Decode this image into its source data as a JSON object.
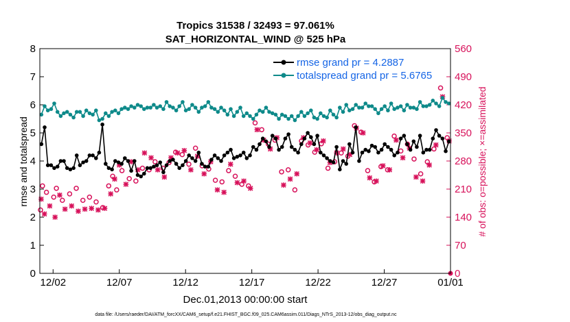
{
  "chart_data": {
    "type": "line",
    "title": "Tropics 31538 / 32493 = 97.061%",
    "subtitle": "SAT_HORIZONTAL_WIND @ 525 hPa",
    "xlabel": "Dec.01,2013 00:00:00 start",
    "ylabel": "rmse and totalspread",
    "y2label": "# of obs: o=possible; ×=assimilated",
    "footnote": "data file: /Users/raeder/DAI/ATM_forcXX/CAM6_setup/f.e21.FHIST_BGC.f09_025.CAM6assim.011/Diags_NTrS_2013-12/obs_diag_output.nc",
    "xlim": [
      0,
      31
    ],
    "ylim": [
      0,
      8
    ],
    "y2lim": [
      0,
      560
    ],
    "xticks": [
      {
        "pos": 1,
        "label": "12/02"
      },
      {
        "pos": 6,
        "label": "12/07"
      },
      {
        "pos": 11,
        "label": "12/12"
      },
      {
        "pos": 16,
        "label": "12/17"
      },
      {
        "pos": 21,
        "label": "12/22"
      },
      {
        "pos": 26,
        "label": "12/27"
      },
      {
        "pos": 31,
        "label": "01/01"
      }
    ],
    "yticks": [
      "0",
      "1",
      "2",
      "3",
      "4",
      "5",
      "6",
      "7",
      "8"
    ],
    "y2ticks": [
      "0",
      "70",
      "140",
      "210",
      "280",
      "350",
      "420",
      "490",
      "560"
    ],
    "colors": {
      "rmse": "#000000",
      "spread": "#0e8a8a",
      "obs": "#d7115a",
      "legend_text": "#1565e6"
    },
    "series": [
      {
        "name": "rmse grand pr = 4.2887",
        "axis": "left",
        "marker": "filled-circle",
        "values": [
          4.6,
          5.2,
          3.85,
          3.85,
          3.75,
          3.8,
          4.0,
          4.0,
          3.75,
          3.7,
          3.75,
          4.2,
          3.85,
          3.95,
          4.0,
          4.2,
          4.2,
          4.1,
          4.3,
          5.3,
          3.9,
          3.75,
          3.7,
          4.0,
          3.95,
          3.9,
          4.1,
          4.0,
          3.65,
          4.0,
          3.5,
          3.45,
          3.55,
          3.75,
          3.75,
          3.8,
          3.85,
          3.95,
          3.6,
          3.85,
          4.0,
          4.05,
          3.9,
          3.75,
          3.85,
          4.0,
          4.2,
          4.1,
          4.0,
          4.3,
          3.9,
          3.8,
          3.8,
          4.05,
          4.2,
          4.1,
          4.0,
          4.2,
          4.3,
          4.4,
          4.1,
          4.15,
          4.2,
          4.3,
          4.1,
          4.2,
          4.5,
          4.4,
          4.6,
          4.8,
          4.7,
          4.5,
          4.9,
          4.8,
          4.4,
          4.5,
          4.8,
          4.95,
          4.5,
          4.4,
          4.3,
          4.6,
          4.8,
          5.0,
          4.85,
          4.6,
          4.9,
          4.3,
          4.2,
          4.1,
          4.0,
          3.95,
          4.5,
          3.7,
          4.0,
          3.9,
          4.6,
          4.3,
          5.2,
          4.0,
          4.3,
          4.4,
          4.35,
          4.55,
          4.5,
          4.3,
          4.4,
          4.6,
          4.5,
          4.4,
          4.2,
          4.3,
          4.8,
          4.9,
          4.6,
          4.4,
          4.7,
          4.5,
          4.9,
          4.3,
          4.4,
          4.4,
          4.8,
          5.1,
          4.9,
          4.8,
          4.35,
          4.7
        ]
      },
      {
        "name": "totalspread grand pr = 5.6765",
        "axis": "left",
        "marker": "filled-circle",
        "values": [
          5.65,
          5.95,
          5.8,
          5.85,
          6.05,
          5.75,
          5.6,
          5.7,
          5.75,
          5.65,
          5.55,
          5.75,
          5.75,
          5.6,
          5.8,
          5.7,
          5.65,
          5.8,
          5.45,
          5.5,
          5.7,
          5.6,
          5.75,
          5.8,
          5.7,
          5.85,
          5.9,
          5.85,
          5.95,
          5.9,
          6.0,
          5.95,
          5.85,
          5.9,
          5.9,
          6.0,
          5.9,
          5.95,
          5.85,
          6.1,
          5.95,
          5.9,
          5.8,
          5.95,
          6.1,
          5.8,
          5.85,
          6.0,
          5.9,
          5.75,
          5.9,
          5.95,
          6.1,
          5.9,
          5.85,
          5.75,
          5.9,
          5.8,
          5.65,
          5.85,
          5.6,
          5.75,
          5.9,
          5.6,
          5.7,
          5.6,
          5.5,
          5.65,
          5.8,
          5.75,
          5.9,
          5.75,
          5.7,
          5.65,
          5.5,
          5.65,
          5.6,
          5.5,
          5.6,
          5.45,
          5.6,
          5.75,
          5.6,
          5.7,
          5.8,
          5.55,
          5.5,
          5.7,
          5.6,
          5.55,
          5.8,
          5.65,
          5.55,
          5.9,
          5.75,
          6.0,
          5.8,
          5.85,
          6.0,
          5.9,
          5.9,
          6.05,
          5.95,
          5.95,
          5.85,
          5.7,
          5.85,
          5.95,
          5.8,
          6.05,
          5.85,
          5.9,
          5.95,
          5.8,
          6.0,
          5.9,
          5.9,
          5.85,
          6.1,
          5.95,
          5.95,
          6.0,
          6.15,
          6.05,
          5.95,
          6.25,
          6.1,
          6.05
        ]
      }
    ],
    "obs_possible": [
      {
        "x": 0.05,
        "y": 158
      },
      {
        "x": 0.2,
        "y": 218
      },
      {
        "x": 0.5,
        "y": 202
      },
      {
        "x": 1.05,
        "y": 190
      },
      {
        "x": 1.25,
        "y": 212
      },
      {
        "x": 1.7,
        "y": 182
      },
      {
        "x": 2.25,
        "y": 198
      },
      {
        "x": 2.75,
        "y": 212
      },
      {
        "x": 3.25,
        "y": 182
      },
      {
        "x": 3.75,
        "y": 190
      },
      {
        "x": 4.25,
        "y": 178
      },
      {
        "x": 4.75,
        "y": 164
      },
      {
        "x": 5.2,
        "y": 218
      },
      {
        "x": 5.5,
        "y": 242
      },
      {
        "x": 5.8,
        "y": 208
      },
      {
        "x": 6.2,
        "y": 256
      },
      {
        "x": 6.75,
        "y": 236
      },
      {
        "x": 7.25,
        "y": 230
      },
      {
        "x": 7.75,
        "y": 262
      },
      {
        "x": 8.25,
        "y": 258
      },
      {
        "x": 8.7,
        "y": 278
      },
      {
        "x": 9.3,
        "y": 262
      },
      {
        "x": 9.75,
        "y": 276
      },
      {
        "x": 10.25,
        "y": 302
      },
      {
        "x": 10.75,
        "y": 296
      },
      {
        "x": 11.25,
        "y": 272
      },
      {
        "x": 11.75,
        "y": 312
      },
      {
        "x": 12.25,
        "y": 268
      },
      {
        "x": 12.75,
        "y": 260
      },
      {
        "x": 13.25,
        "y": 232
      },
      {
        "x": 13.75,
        "y": 228
      },
      {
        "x": 14.25,
        "y": 256
      },
      {
        "x": 14.75,
        "y": 242
      },
      {
        "x": 15.25,
        "y": 222
      },
      {
        "x": 15.75,
        "y": 218
      },
      {
        "x": 16.25,
        "y": 375
      },
      {
        "x": 16.75,
        "y": 358
      },
      {
        "x": 17.25,
        "y": 322
      },
      {
        "x": 17.75,
        "y": 332
      },
      {
        "x": 18.25,
        "y": 253
      },
      {
        "x": 18.75,
        "y": 258
      },
      {
        "x": 19.25,
        "y": 208
      },
      {
        "x": 19.75,
        "y": 330
      },
      {
        "x": 20.25,
        "y": 320
      },
      {
        "x": 20.75,
        "y": 302
      },
      {
        "x": 21.25,
        "y": 323
      },
      {
        "x": 21.75,
        "y": 262
      },
      {
        "x": 22.25,
        "y": 278
      },
      {
        "x": 22.75,
        "y": 300
      },
      {
        "x": 23.25,
        "y": 292
      },
      {
        "x": 23.75,
        "y": 368
      },
      {
        "x": 24.25,
        "y": 352
      },
      {
        "x": 24.75,
        "y": 256
      },
      {
        "x": 25.25,
        "y": 228
      },
      {
        "x": 25.75,
        "y": 266
      },
      {
        "x": 26.25,
        "y": 258
      },
      {
        "x": 26.75,
        "y": 342
      },
      {
        "x": 27.25,
        "y": 305
      },
      {
        "x": 27.75,
        "y": 322
      },
      {
        "x": 28.25,
        "y": 285
      },
      {
        "x": 28.75,
        "y": 248
      },
      {
        "x": 29.25,
        "y": 278
      },
      {
        "x": 29.75,
        "y": 310
      },
      {
        "x": 30.25,
        "y": 462
      },
      {
        "x": 30.75,
        "y": 338
      }
    ],
    "obs_assimilated": [
      {
        "x": 0.1,
        "y": 185
      },
      {
        "x": 0.35,
        "y": 148
      },
      {
        "x": 0.75,
        "y": 168
      },
      {
        "x": 1.15,
        "y": 140
      },
      {
        "x": 1.5,
        "y": 195
      },
      {
        "x": 1.9,
        "y": 160
      },
      {
        "x": 2.4,
        "y": 168
      },
      {
        "x": 2.9,
        "y": 155
      },
      {
        "x": 3.4,
        "y": 160
      },
      {
        "x": 3.9,
        "y": 162
      },
      {
        "x": 4.4,
        "y": 158
      },
      {
        "x": 4.9,
        "y": 162
      },
      {
        "x": 5.35,
        "y": 198
      },
      {
        "x": 5.65,
        "y": 235
      },
      {
        "x": 6.0,
        "y": 270
      },
      {
        "x": 6.5,
        "y": 222
      },
      {
        "x": 6.9,
        "y": 278
      },
      {
        "x": 7.4,
        "y": 258
      },
      {
        "x": 7.9,
        "y": 300
      },
      {
        "x": 8.4,
        "y": 288
      },
      {
        "x": 8.9,
        "y": 258
      },
      {
        "x": 9.4,
        "y": 240
      },
      {
        "x": 9.9,
        "y": 288
      },
      {
        "x": 10.4,
        "y": 300
      },
      {
        "x": 10.9,
        "y": 306
      },
      {
        "x": 11.4,
        "y": 258
      },
      {
        "x": 11.9,
        "y": 292
      },
      {
        "x": 12.4,
        "y": 248
      },
      {
        "x": 12.9,
        "y": 278
      },
      {
        "x": 13.4,
        "y": 208
      },
      {
        "x": 13.9,
        "y": 202
      },
      {
        "x": 14.4,
        "y": 272
      },
      {
        "x": 14.9,
        "y": 226
      },
      {
        "x": 15.4,
        "y": 230
      },
      {
        "x": 15.9,
        "y": 212
      },
      {
        "x": 16.4,
        "y": 358
      },
      {
        "x": 16.9,
        "y": 332
      },
      {
        "x": 17.4,
        "y": 310
      },
      {
        "x": 17.9,
        "y": 338
      },
      {
        "x": 18.4,
        "y": 220
      },
      {
        "x": 18.9,
        "y": 235
      },
      {
        "x": 19.4,
        "y": 248
      },
      {
        "x": 19.9,
        "y": 338
      },
      {
        "x": 20.4,
        "y": 325
      },
      {
        "x": 20.9,
        "y": 308
      },
      {
        "x": 21.4,
        "y": 330
      },
      {
        "x": 21.9,
        "y": 276
      },
      {
        "x": 22.4,
        "y": 300
      },
      {
        "x": 22.9,
        "y": 310
      },
      {
        "x": 23.4,
        "y": 296
      },
      {
        "x": 23.9,
        "y": 362
      },
      {
        "x": 24.4,
        "y": 350
      },
      {
        "x": 24.9,
        "y": 238
      },
      {
        "x": 25.4,
        "y": 230
      },
      {
        "x": 25.9,
        "y": 268
      },
      {
        "x": 26.4,
        "y": 258
      },
      {
        "x": 26.9,
        "y": 332
      },
      {
        "x": 27.4,
        "y": 288
      },
      {
        "x": 27.9,
        "y": 312
      },
      {
        "x": 28.4,
        "y": 240
      },
      {
        "x": 28.9,
        "y": 230
      },
      {
        "x": 29.4,
        "y": 270
      },
      {
        "x": 29.9,
        "y": 320
      },
      {
        "x": 30.4,
        "y": 440
      },
      {
        "x": 30.9,
        "y": 330
      }
    ]
  }
}
